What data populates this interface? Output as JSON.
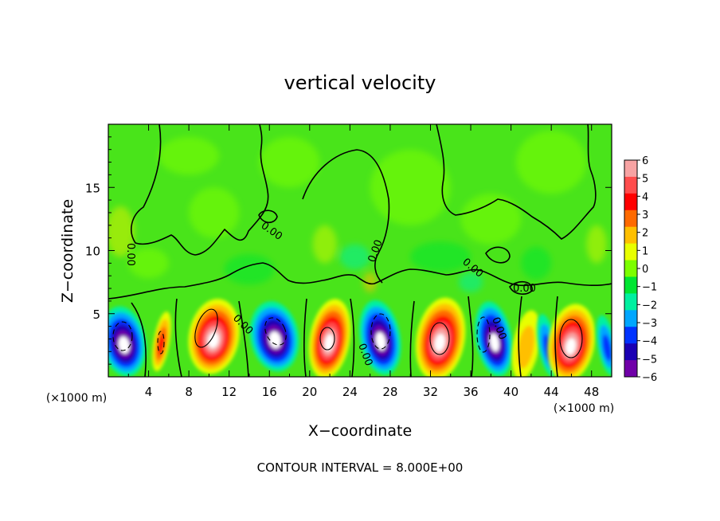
{
  "chart_data": {
    "type": "heatmap",
    "title": "vertical velocity",
    "xlabel": "X−coordinate",
    "ylabel": "Z−coordinate",
    "x_unit_left": "(×1000 m)",
    "x_unit_right": "(×1000 m)",
    "xlim": [
      0,
      50
    ],
    "ylim": [
      0,
      20
    ],
    "x_ticks": [
      4,
      8,
      12,
      16,
      20,
      24,
      28,
      32,
      36,
      40,
      44,
      48
    ],
    "y_ticks": [
      5,
      10,
      15
    ],
    "colorbar": {
      "ticks": [
        "6",
        "5",
        "4",
        "3",
        "2",
        "1",
        "0",
        "−1",
        "−2",
        "−3",
        "−4",
        "−5",
        "−6"
      ],
      "colors": [
        "#f7a3a3",
        "#ff4d4d",
        "#ff0000",
        "#ff6a00",
        "#ffbf00",
        "#e8ff00",
        "#7cff00",
        "#00e632",
        "#00f0a0",
        "#00a6ff",
        "#0033ff",
        "#1a00b3",
        "#7000a8"
      ]
    },
    "contour_labels": [
      "0.00",
      "0.00",
      "0.00",
      "0.00",
      "0.00",
      "0.00",
      "0.00",
      "0.00"
    ],
    "cells": [
      {
        "x": 1.5,
        "z": 2.8,
        "w": -6,
        "rx": 2.2,
        "rz": 2.8
      },
      {
        "x": 5.3,
        "z": 2.8,
        "w": 4,
        "rx": 0.8,
        "rz": 2.4
      },
      {
        "x": 10.5,
        "z": 3.2,
        "w": 8,
        "rx": 2.5,
        "rz": 3.0
      },
      {
        "x": 16.5,
        "z": 3.2,
        "w": -7,
        "rx": 2.4,
        "rz": 2.8
      },
      {
        "x": 22.0,
        "z": 3.0,
        "w": 7,
        "rx": 2.0,
        "rz": 3.2
      },
      {
        "x": 27.0,
        "z": 3.1,
        "w": -8,
        "rx": 2.0,
        "rz": 3.0
      },
      {
        "x": 33.0,
        "z": 3.0,
        "w": 8,
        "rx": 2.4,
        "rz": 3.3
      },
      {
        "x": 38.3,
        "z": 3.0,
        "w": -6,
        "rx": 1.8,
        "rz": 3.0
      },
      {
        "x": 41.5,
        "z": 2.5,
        "w": 2,
        "rx": 1.3,
        "rz": 2.8
      },
      {
        "x": 43.6,
        "z": 2.5,
        "w": -3,
        "rx": 0.9,
        "rz": 2.5
      },
      {
        "x": 46.0,
        "z": 2.7,
        "w": 8,
        "rx": 2.3,
        "rz": 3.1
      },
      {
        "x": 49.5,
        "z": 2.5,
        "w": -3,
        "rx": 0.9,
        "rz": 2.4
      }
    ],
    "grid": false,
    "legend": "colorbar-right",
    "annotation": "CONTOUR INTERVAL = 8.000E+00"
  }
}
